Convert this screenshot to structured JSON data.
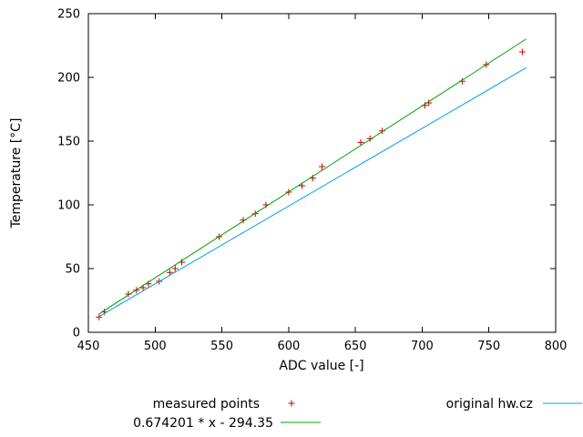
{
  "chart_data": {
    "type": "scatter",
    "title": "",
    "xlabel": "ADC value [-]",
    "ylabel": "Temperature [°C]",
    "xlim": [
      450,
      800
    ],
    "ylim": [
      0,
      250
    ],
    "xticks": [
      450,
      500,
      550,
      600,
      650,
      700,
      750,
      800
    ],
    "yticks": [
      0,
      50,
      100,
      150,
      200,
      250
    ],
    "grid": false,
    "legend_position": "below",
    "axis_color": "#000000",
    "series": [
      {
        "name": "measured-points",
        "label": "measured points",
        "type": "points",
        "marker": "plus",
        "color": "#cc0000",
        "points": [
          [
            458,
            12
          ],
          [
            462,
            16
          ],
          [
            480,
            30
          ],
          [
            486,
            33
          ],
          [
            491,
            35
          ],
          [
            495,
            38
          ],
          [
            503,
            40
          ],
          [
            511,
            47
          ],
          [
            515,
            50
          ],
          [
            520,
            55
          ],
          [
            548,
            75
          ],
          [
            566,
            88
          ],
          [
            575,
            93
          ],
          [
            583,
            100
          ],
          [
            600,
            110
          ],
          [
            610,
            115
          ],
          [
            618,
            121
          ],
          [
            625,
            130
          ],
          [
            654,
            149
          ],
          [
            661,
            152
          ],
          [
            670,
            158
          ],
          [
            702,
            178
          ],
          [
            705,
            180
          ],
          [
            730,
            197
          ],
          [
            748,
            210
          ],
          [
            775,
            220
          ]
        ]
      },
      {
        "name": "fit-line",
        "label": "0.674201 * x - 294.35",
        "type": "line",
        "color": "#00a000",
        "slope": 0.674201,
        "intercept": -294.35,
        "points": [
          [
            458,
            14.43
          ],
          [
            778,
            230.18
          ]
        ]
      },
      {
        "name": "original-hwcz-line",
        "label": "original hw.cz",
        "type": "line",
        "color": "#00a2e8",
        "points": [
          [
            458,
            12.4
          ],
          [
            778,
            207.6
          ]
        ]
      }
    ]
  }
}
